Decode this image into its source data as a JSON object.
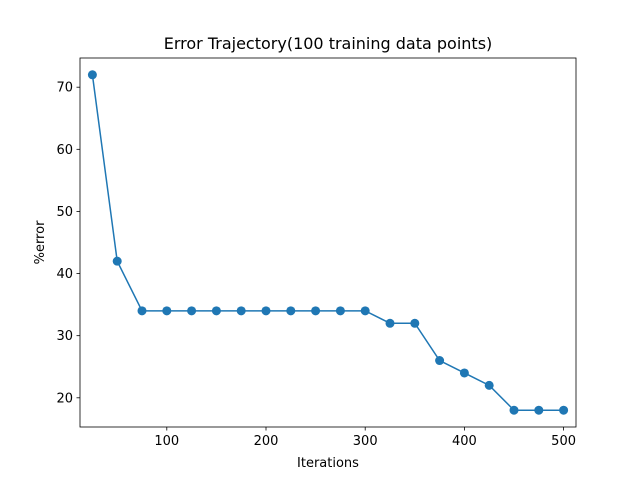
{
  "chart_data": {
    "type": "line",
    "title": "Error Trajectory(100 training data points)",
    "xlabel": "Iterations",
    "ylabel": "%error",
    "xlim": [
      12.5,
      512.5
    ],
    "ylim": [
      15.3,
      74.7
    ],
    "xticks": [
      100,
      200,
      300,
      400,
      500
    ],
    "yticks": [
      20,
      30,
      40,
      50,
      60,
      70
    ],
    "grid": false,
    "legend": "none",
    "series": [
      {
        "color": "#1f77b4",
        "marker": "circle",
        "x": [
          25,
          50,
          75,
          100,
          125,
          150,
          175,
          200,
          225,
          250,
          275,
          300,
          325,
          350,
          375,
          400,
          425,
          450,
          475,
          500
        ],
        "y": [
          72,
          42,
          34,
          34,
          34,
          34,
          34,
          34,
          34,
          34,
          34,
          34,
          32,
          32,
          26,
          24,
          22,
          18,
          18,
          18
        ]
      }
    ]
  }
}
